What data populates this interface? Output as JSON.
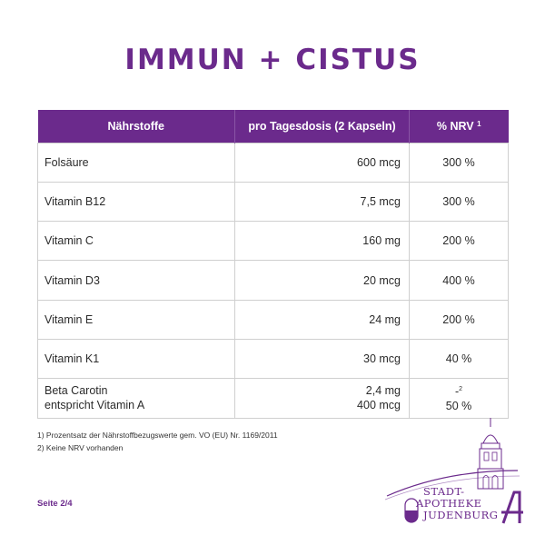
{
  "title": "IMMUN + CISTUS",
  "table": {
    "headers": {
      "nutrient": "Nährstoffe",
      "dose": "pro Tagesdosis (2 Kapseln)",
      "nrv": "% NRV",
      "nrv_footnote": "1"
    },
    "rows": [
      {
        "name": "Folsäure",
        "dose": "600 mcg",
        "nrv": "300 %"
      },
      {
        "name": "Vitamin B12",
        "dose": "7,5 mcg",
        "nrv": "300 %"
      },
      {
        "name": "Vitamin C",
        "dose": "160 mg",
        "nrv": "200 %"
      },
      {
        "name": "Vitamin D3",
        "dose": "20 mcg",
        "nrv": "400 %"
      },
      {
        "name": "Vitamin E",
        "dose": "24 mg",
        "nrv": "200 %"
      },
      {
        "name": "Vitamin K1",
        "dose": "30 mcg",
        "nrv": "40 %"
      }
    ],
    "last_row": {
      "name_line1": "Beta Carotin",
      "name_line2": "entspricht Vitamin A",
      "dose_line1": "2,4 mg",
      "dose_line2": "400 mcg",
      "nrv_line1": "-",
      "nrv_line1_footnote": "2",
      "nrv_line2": "50 %"
    }
  },
  "footnotes": [
    "1) Prozentsatz der Nährstoffbezugswerte gem. VO (EU) Nr. 1169/2011",
    "2) Keine NRV vorhanden"
  ],
  "page_label": "Seite 2/4",
  "logo": {
    "line1": "STADT-",
    "line2": "APOTHEKE",
    "line3": "JUDENBURG"
  },
  "colors": {
    "brand_purple": "#6b2a8c",
    "text": "#2b2b2b",
    "grid": "#cfcfcf"
  }
}
